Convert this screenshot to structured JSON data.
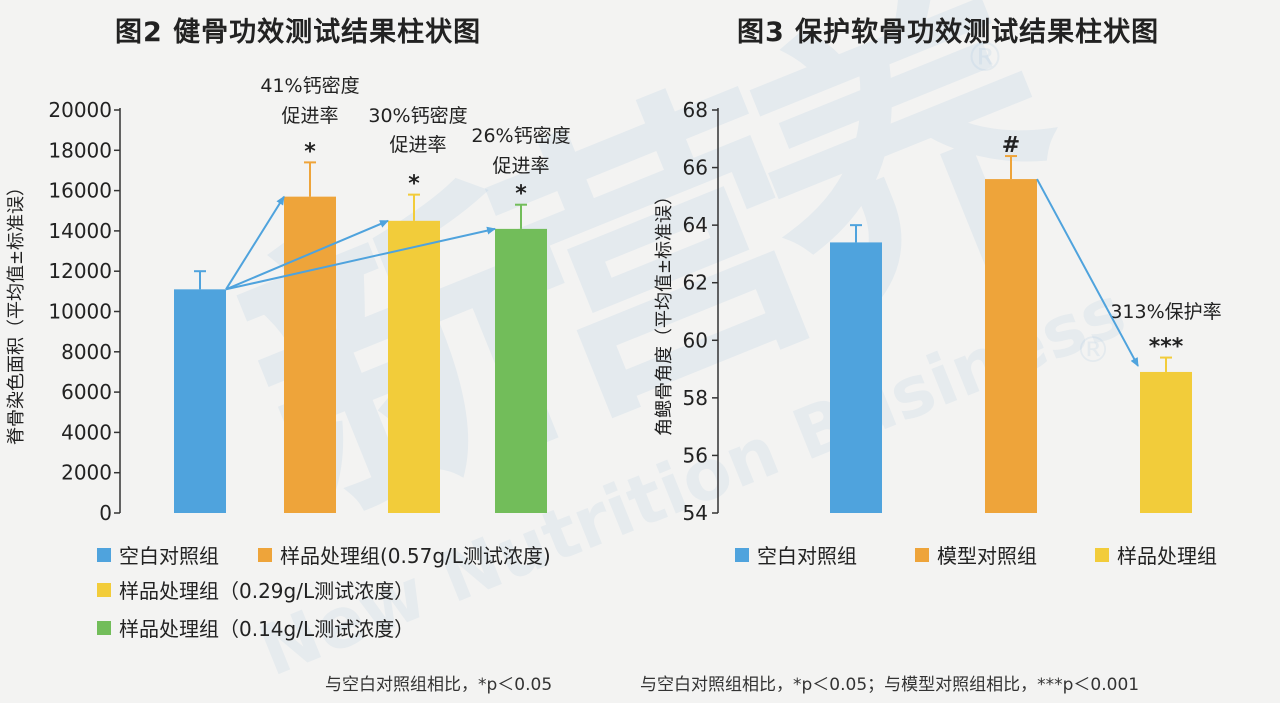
{
  "chart_data": [
    {
      "type": "bar",
      "title": "图2 健骨功效测试结果柱状图",
      "ylabel": "脊骨染色面积（平均值±标准误）",
      "ylim": [
        0,
        20000
      ],
      "yticks": [
        "0",
        "2000",
        "4000",
        "6000",
        "8000",
        "10000",
        "12000",
        "14000",
        "16000",
        "18000",
        "20000"
      ],
      "categories": [
        "空白对照组",
        "样品处理组(0.57g/L测试浓度)",
        "样品处理组（0.29g/L测试浓度）",
        "样品处理组（0.14g/L测试浓度）"
      ],
      "values": [
        11100,
        15700,
        14500,
        14100
      ],
      "errors": [
        900,
        1700,
        1300,
        1200
      ],
      "colors": [
        "#4fa3dd",
        "#eea43a",
        "#f2cc3a",
        "#72bd5a"
      ],
      "significance": [
        "",
        "*",
        "*",
        "*"
      ],
      "annotations": [
        {
          "bar": 1,
          "line1": "41%钙密度",
          "line2": "促进率"
        },
        {
          "bar": 2,
          "line1": "30%钙密度",
          "line2": "促进率"
        },
        {
          "bar": 3,
          "line1": "26%钙密度",
          "line2": "促进率"
        }
      ],
      "legend": [
        "空白对照组",
        "样品处理组(0.57g/L测试浓度)",
        "样品处理组（0.29g/L测试浓度）",
        "样品处理组（0.14g/L测试浓度）"
      ],
      "footnote": "与空白对照组相比，*p＜0.05"
    },
    {
      "type": "bar",
      "title": "图3 保护软骨功效测试结果柱状图",
      "ylabel": "角鳃骨角度（平均值±标准误）",
      "ylim": [
        54,
        68
      ],
      "yticks": [
        "54",
        "56",
        "58",
        "60",
        "62",
        "64",
        "66",
        "68"
      ],
      "categories": [
        "空白对照组",
        "模型对照组",
        "样品处理组"
      ],
      "values": [
        63.4,
        65.6,
        58.9
      ],
      "errors": [
        0.6,
        0.8,
        0.5
      ],
      "colors": [
        "#4fa3dd",
        "#eea43a",
        "#f2cc3a"
      ],
      "significance": [
        "",
        "#",
        "***"
      ],
      "annotations": [
        {
          "bar": 2,
          "line1": "313%保护率",
          "line2": ""
        }
      ],
      "legend": [
        "空白对照组",
        "模型对照组",
        "样品处理组"
      ],
      "footnote": "与空白对照组相比，*p＜0.05；与模型对照组相比，***p＜0.001"
    }
  ],
  "watermark": {
    "chars": "新营养",
    "reg": "®",
    "latin": "New Nutrition Business"
  },
  "arrow_color": "#4fa3dd"
}
